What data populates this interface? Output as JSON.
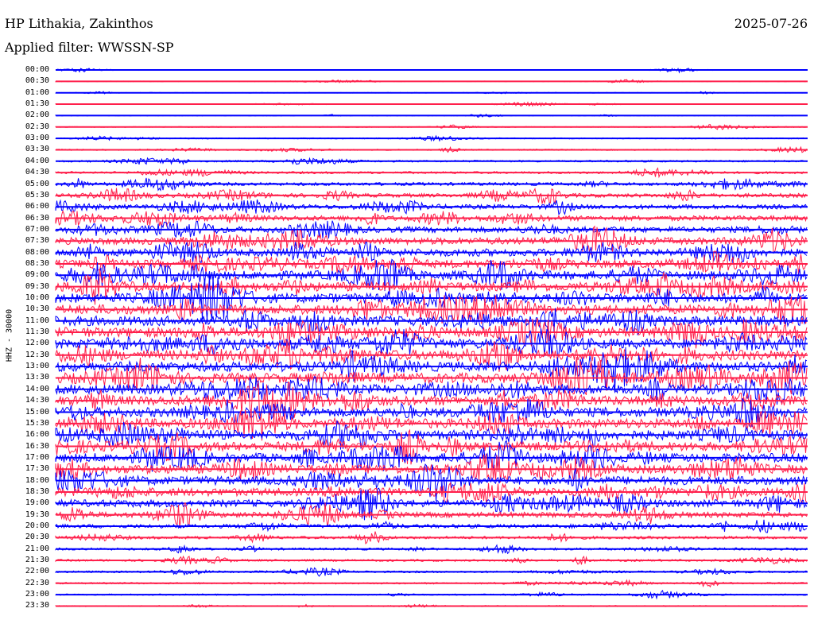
{
  "header": {
    "station": "HP Lithakia, Zakinthos",
    "date": "2025-07-26",
    "filter_label": "Applied filter:",
    "filter_value": "WWSSN-SP"
  },
  "channel_label": "HHZ - 30000",
  "colors": {
    "trace_even": "#0000ff",
    "trace_odd": "#ff1f4b",
    "background": "#ffffff",
    "text": "#000000"
  },
  "rows": [
    {
      "time": "00:00",
      "level": 0.08
    },
    {
      "time": "00:30",
      "level": 0.07
    },
    {
      "time": "01:00",
      "level": 0.07
    },
    {
      "time": "01:30",
      "level": 0.08
    },
    {
      "time": "02:00",
      "level": 0.07
    },
    {
      "time": "02:30",
      "level": 0.12
    },
    {
      "time": "03:00",
      "level": 0.16
    },
    {
      "time": "03:30",
      "level": 0.2
    },
    {
      "time": "04:00",
      "level": 0.26
    },
    {
      "time": "04:30",
      "level": 0.32
    },
    {
      "time": "05:00",
      "level": 0.42
    },
    {
      "time": "05:30",
      "level": 0.5
    },
    {
      "time": "06:00",
      "level": 0.55
    },
    {
      "time": "06:30",
      "level": 0.6
    },
    {
      "time": "07:00",
      "level": 0.66
    },
    {
      "time": "07:30",
      "level": 0.75
    },
    {
      "time": "08:00",
      "level": 0.8
    },
    {
      "time": "08:30",
      "level": 0.84
    },
    {
      "time": "09:00",
      "level": 0.88
    },
    {
      "time": "09:30",
      "level": 0.9
    },
    {
      "time": "10:00",
      "level": 0.92
    },
    {
      "time": "10:30",
      "level": 0.93
    },
    {
      "time": "11:00",
      "level": 0.94
    },
    {
      "time": "11:30",
      "level": 0.95
    },
    {
      "time": "12:00",
      "level": 0.96
    },
    {
      "time": "12:30",
      "level": 0.96
    },
    {
      "time": "13:00",
      "level": 0.95
    },
    {
      "time": "13:30",
      "level": 0.95
    },
    {
      "time": "14:00",
      "level": 0.94
    },
    {
      "time": "14:30",
      "level": 0.93
    },
    {
      "time": "15:00",
      "level": 0.92
    },
    {
      "time": "15:30",
      "level": 0.92
    },
    {
      "time": "16:00",
      "level": 0.92
    },
    {
      "time": "16:30",
      "level": 0.9
    },
    {
      "time": "17:00",
      "level": 0.9
    },
    {
      "time": "17:30",
      "level": 0.88
    },
    {
      "time": "18:00",
      "level": 0.86
    },
    {
      "time": "18:30",
      "level": 0.82
    },
    {
      "time": "19:00",
      "level": 0.78
    },
    {
      "time": "19:30",
      "level": 0.62
    },
    {
      "time": "20:00",
      "level": 0.48
    },
    {
      "time": "20:30",
      "level": 0.38
    },
    {
      "time": "21:00",
      "level": 0.32
    },
    {
      "time": "21:30",
      "level": 0.3
    },
    {
      "time": "22:00",
      "level": 0.28
    },
    {
      "time": "22:30",
      "level": 0.24
    },
    {
      "time": "23:00",
      "level": 0.2
    },
    {
      "time": "23:30",
      "level": 0.16
    }
  ]
}
